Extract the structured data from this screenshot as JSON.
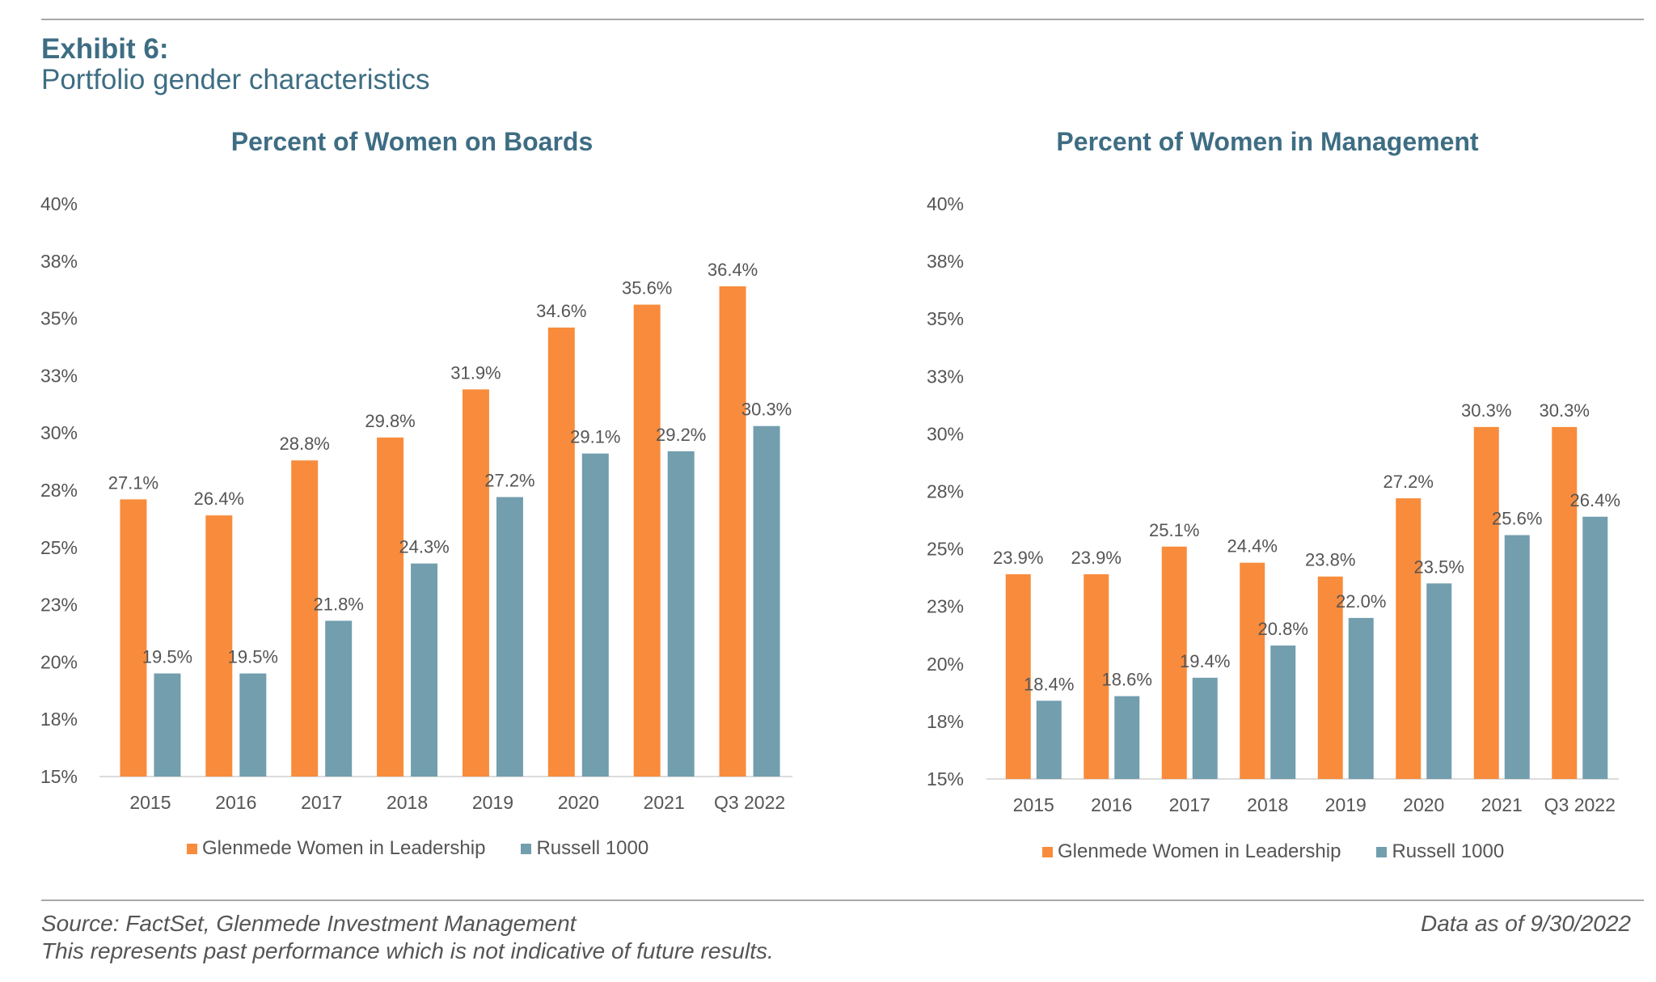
{
  "header": {
    "exhibit": "Exhibit 6:",
    "subtitle": "Portfolio gender characteristics"
  },
  "footer": {
    "source": "Source: FactSet, Glenmede Investment Management",
    "disclaimer": "This represents past performance which is not indicative of future results.",
    "as_of": "Data as of 9/30/2022"
  },
  "colors": {
    "glenmede": "#f88c3c",
    "russell": "#729eae",
    "title": "#3e6d83"
  },
  "chart_data": [
    {
      "type": "bar",
      "title": "Percent of Women on Boards",
      "xlabel": "",
      "ylabel": "",
      "ylim": [
        15,
        40
      ],
      "yticks": [
        "15%",
        "18%",
        "20%",
        "23%",
        "25%",
        "28%",
        "30%",
        "33%",
        "35%",
        "38%",
        "40%"
      ],
      "grid": false,
      "legend_position": "bottom",
      "categories": [
        "2015",
        "2016",
        "2017",
        "2018",
        "2019",
        "2020",
        "2021",
        "Q3 2022"
      ],
      "series": [
        {
          "name": "Glenmede Women in Leadership",
          "values": [
            27.1,
            26.4,
            28.8,
            29.8,
            31.9,
            34.6,
            35.6,
            36.4
          ],
          "labels": [
            "27.1%",
            "26.4%",
            "28.8%",
            "29.8%",
            "31.9%",
            "34.6%",
            "35.6%",
            "36.4%"
          ]
        },
        {
          "name": "Russell 1000",
          "values": [
            19.5,
            19.5,
            21.8,
            24.3,
            27.2,
            29.1,
            29.2,
            30.3
          ],
          "labels": [
            "19.5%",
            "19.5%",
            "21.8%",
            "24.3%",
            "27.2%",
            "29.1%",
            "29.2%",
            "30.3%"
          ]
        }
      ]
    },
    {
      "type": "bar",
      "title": "Percent of Women in Management",
      "xlabel": "",
      "ylabel": "",
      "ylim": [
        15,
        40
      ],
      "yticks": [
        "15%",
        "18%",
        "20%",
        "23%",
        "25%",
        "28%",
        "30%",
        "33%",
        "35%",
        "38%",
        "40%"
      ],
      "grid": false,
      "legend_position": "bottom",
      "categories": [
        "2015",
        "2016",
        "2017",
        "2018",
        "2019",
        "2020",
        "2021",
        "Q3 2022"
      ],
      "series": [
        {
          "name": "Glenmede Women in Leadership",
          "values": [
            23.9,
            23.9,
            25.1,
            24.4,
            23.8,
            27.2,
            30.3,
            30.3
          ],
          "labels": [
            "23.9%",
            "23.9%",
            "25.1%",
            "24.4%",
            "23.8%",
            "27.2%",
            "30.3%",
            "30.3%"
          ]
        },
        {
          "name": "Russell 1000",
          "values": [
            18.4,
            18.6,
            19.4,
            20.8,
            22.0,
            23.5,
            25.6,
            26.4
          ],
          "labels": [
            "18.4%",
            "18.6%",
            "19.4%",
            "20.8%",
            "22.0%",
            "23.5%",
            "25.6%",
            "26.4%"
          ]
        }
      ]
    }
  ]
}
